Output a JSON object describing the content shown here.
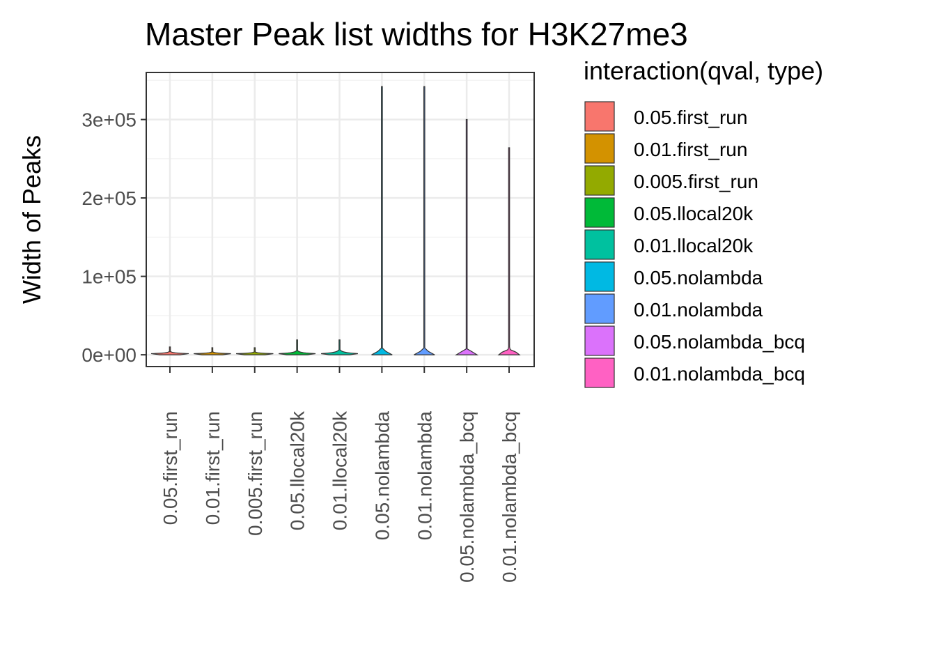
{
  "chart_data": {
    "type": "violin",
    "title": "Master Peak list widths for H3K27me3",
    "xlabel": "",
    "ylabel": "Width of Peaks",
    "ylim": [
      -15000,
      360000
    ],
    "y_ticks": [
      0,
      100000,
      200000,
      300000
    ],
    "y_tick_labels": [
      "0e+00",
      "1e+05",
      "2e+05",
      "3e+05"
    ],
    "grid": true,
    "legend": {
      "title": "interaction(qval, type)",
      "position": "right"
    },
    "categories": [
      "0.05.first_run",
      "0.01.first_run",
      "0.005.first_run",
      "0.05.llocal20k",
      "0.01.llocal20k",
      "0.05.nolambda",
      "0.01.nolambda",
      "0.05.nolambda_bcq",
      "0.01.nolambda_bcq"
    ],
    "colors": [
      "#F8766D",
      "#D39200",
      "#93AA00",
      "#00BA38",
      "#00C19F",
      "#00B9E3",
      "#619CFF",
      "#DB72FB",
      "#FF61C3"
    ],
    "max_values": [
      10000,
      9000,
      9000,
      19000,
      19000,
      342000,
      342000,
      300000,
      264000
    ],
    "bulk_max": [
      4000,
      3500,
      3500,
      5000,
      6000,
      7000,
      7000,
      7000,
      7000
    ],
    "typical_width": 1500
  }
}
